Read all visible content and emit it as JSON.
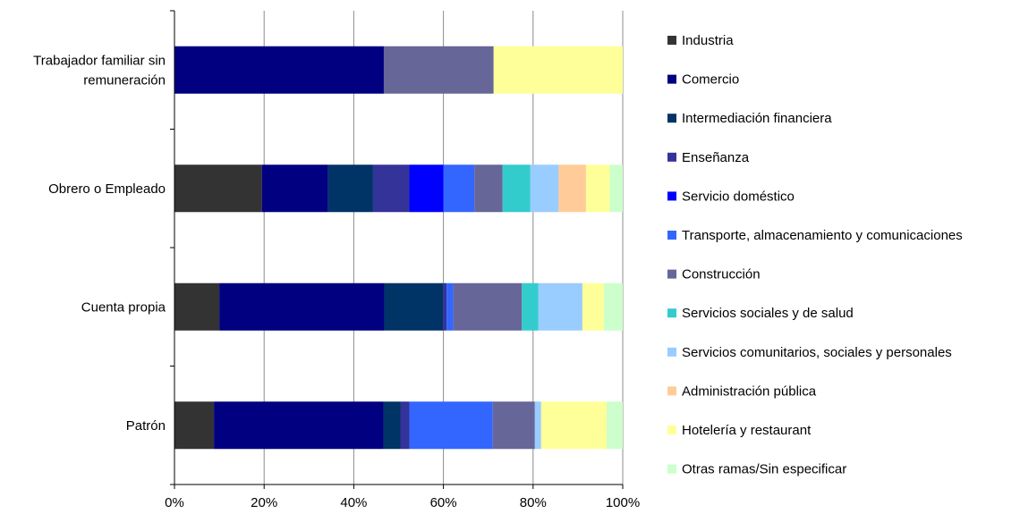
{
  "chart_data": {
    "type": "bar",
    "orientation": "horizontal",
    "stacked": "percent",
    "title": "",
    "xlabel": "",
    "ylabel": "",
    "xlim": [
      0,
      100
    ],
    "x_ticks": [
      "0%",
      "20%",
      "40%",
      "60%",
      "80%",
      "100%"
    ],
    "grid": true,
    "legend_position": "right",
    "categories": [
      [
        "Trabajador familiar sin",
        "remuneración"
      ],
      [
        "Obrero o Empleado"
      ],
      [
        "Cuenta propia"
      ],
      [
        "Patrón"
      ]
    ],
    "series": [
      {
        "name": "Industria",
        "color": "#333333",
        "values": [
          0,
          19.5,
          10,
          8.8
        ]
      },
      {
        "name": "Comercio",
        "color": "#000080",
        "values": [
          46.7,
          14.8,
          36.8,
          37.8
        ]
      },
      {
        "name": "Intermediación financiera",
        "color": "#003366",
        "values": [
          0,
          10,
          13.1,
          3.8
        ]
      },
      {
        "name": "Enseñanza",
        "color": "#333399",
        "values": [
          0,
          8.1,
          0.8,
          2
        ]
      },
      {
        "name": "Servicio doméstico",
        "color": "#0000FF",
        "values": [
          0,
          7.6,
          0,
          0
        ]
      },
      {
        "name": "Transporte, almacenamiento y comunicaciones",
        "color": "#3366FF",
        "values": [
          0,
          6.9,
          1.5,
          18.6
        ]
      },
      {
        "name": "Construcción",
        "color": "#666699",
        "values": [
          24.5,
          6.3,
          15.3,
          9.4
        ]
      },
      {
        "name": "Servicios sociales y de salud",
        "color": "#33CCCC",
        "values": [
          0,
          6.2,
          3.7,
          0
        ]
      },
      {
        "name": "Servicios comunitarios, sociales y personales",
        "color": "#99CCFF",
        "values": [
          0,
          6.3,
          9.8,
          1.4
        ]
      },
      {
        "name": "Administración pública",
        "color": "#FFCC99",
        "values": [
          0,
          6.1,
          0,
          0
        ]
      },
      {
        "name": "Hotelería y restaurant",
        "color": "#FFFF99",
        "values": [
          28.8,
          5.3,
          4.8,
          14.6
        ]
      },
      {
        "name": "Otras ramas/Sin especificar",
        "color": "#CCFFCC",
        "values": [
          0,
          2.9,
          4.2,
          3.6
        ]
      }
    ]
  }
}
